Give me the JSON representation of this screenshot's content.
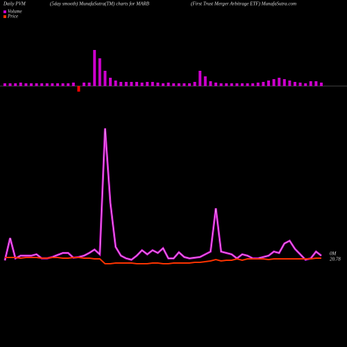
{
  "chart_data": {
    "type": "combo",
    "title": "Daily PVM",
    "subtitle": "(5day smooth) MunafaSutra(TM) charts for MARB",
    "subtitle2": "(First Trust Merger Arbitrage  ETF) MunafaSutra.com",
    "annotations": [
      "0M",
      "20.78"
    ],
    "bars": {
      "lim": [
        -20,
        60
      ],
      "values": [
        4,
        4,
        4,
        5,
        4,
        4,
        4,
        4,
        4,
        4,
        4,
        4,
        4,
        5,
        -8,
        5,
        5,
        52,
        40,
        22,
        12,
        8,
        6,
        6,
        6,
        6,
        5,
        6,
        6,
        5,
        4,
        5,
        4,
        4,
        4,
        4,
        6,
        22,
        14,
        7,
        5,
        4,
        4,
        4,
        4,
        4,
        4,
        4,
        5,
        6,
        8,
        10,
        12,
        10,
        8,
        6,
        5,
        4,
        7,
        7,
        5
      ],
      "colors": [
        "#cc00cc",
        "#cc00cc",
        "#cc00cc",
        "#cc00cc",
        "#cc00cc",
        "#cc00cc",
        "#cc00cc",
        "#cc00cc",
        "#cc00cc",
        "#cc00cc",
        "#cc00cc",
        "#cc00cc",
        "#cc00cc",
        "#cc00cc",
        "#ff0000",
        "#cc00cc",
        "#cc00cc",
        "#cc00cc",
        "#cc00cc",
        "#cc00cc",
        "#cc00cc",
        "#cc00cc",
        "#cc00cc",
        "#cc00cc",
        "#cc00cc",
        "#cc00cc",
        "#cc00cc",
        "#cc00cc",
        "#cc00cc",
        "#cc00cc",
        "#cc00cc",
        "#cc00cc",
        "#cc00cc",
        "#cc00cc",
        "#cc00cc",
        "#cc00cc",
        "#cc00cc",
        "#cc00cc",
        "#cc00cc",
        "#cc00cc",
        "#cc00cc",
        "#cc00cc",
        "#cc00cc",
        "#cc00cc",
        "#cc00cc",
        "#cc00cc",
        "#cc00cc",
        "#cc00cc",
        "#cc00cc",
        "#cc00cc",
        "#cc00cc",
        "#cc00cc",
        "#cc00cc",
        "#cc00cc",
        "#cc00cc",
        "#cc00cc",
        "#cc00cc",
        "#cc00cc",
        "#cc00cc",
        "#cc00cc",
        "#cc00cc"
      ]
    },
    "ylim": [
      0,
      210
    ],
    "y2lim": [
      20.5,
      21.0
    ],
    "series": [
      {
        "name": "Volume",
        "color": "#cc00cc",
        "values": [
          10,
          43,
          13,
          17,
          17,
          17,
          19,
          13,
          13,
          15,
          18,
          21,
          21,
          14,
          15,
          17,
          21,
          26,
          19,
          205,
          95,
          30,
          17,
          13,
          11,
          17,
          25,
          19,
          25,
          21,
          28,
          13,
          13,
          22,
          15,
          13,
          14,
          15,
          19,
          23,
          87,
          23,
          21,
          19,
          13,
          19,
          17,
          13,
          13,
          15,
          17,
          23,
          21,
          35,
          39,
          27,
          19,
          11,
          13,
          23,
          17
        ]
      },
      {
        "name": "Price",
        "color": "#ff3300",
        "axis": "y2",
        "values": [
          20.79,
          20.79,
          20.79,
          20.78,
          20.79,
          20.79,
          20.79,
          20.78,
          20.78,
          20.79,
          20.79,
          20.78,
          20.78,
          20.79,
          20.79,
          20.78,
          20.78,
          20.77,
          20.77,
          20.7,
          20.7,
          20.71,
          20.71,
          20.71,
          20.71,
          20.7,
          20.7,
          20.7,
          20.71,
          20.71,
          20.7,
          20.7,
          20.71,
          20.71,
          20.71,
          20.71,
          20.72,
          20.72,
          20.73,
          20.74,
          20.76,
          20.74,
          20.75,
          20.75,
          20.77,
          20.75,
          20.77,
          20.77,
          20.77,
          20.77,
          20.76,
          20.77,
          20.77,
          20.77,
          20.77,
          20.77,
          20.77,
          20.77,
          20.77,
          20.78,
          20.78
        ]
      }
    ]
  }
}
